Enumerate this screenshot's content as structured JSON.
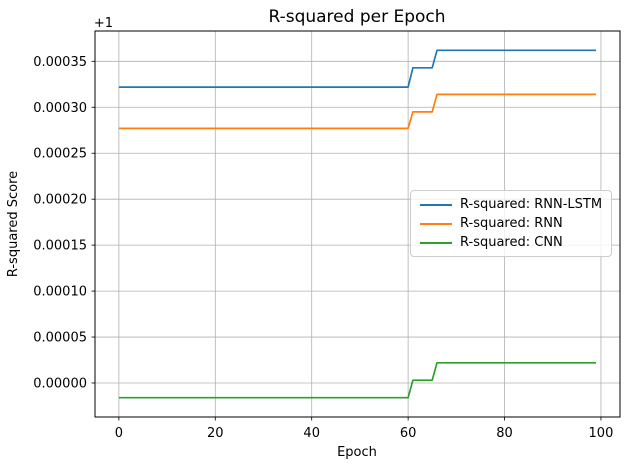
{
  "chart_data": {
    "type": "line",
    "title": "R-squared per Epoch",
    "xlabel": "Epoch",
    "ylabel": "R-squared Score",
    "offset_text": "+1",
    "x_ticks": [
      0,
      20,
      40,
      60,
      80,
      100
    ],
    "y_ticks": [
      0.0,
      5e-05,
      0.0001,
      0.00015,
      0.0002,
      0.00025,
      0.0003,
      0.00035
    ],
    "y_tick_labels": [
      "0.00000",
      "0.00005",
      "0.00010",
      "0.00015",
      "0.00020",
      "0.00025",
      "0.00030",
      "0.00035"
    ],
    "xlim": [
      -4.95,
      103.95
    ],
    "ylim": [
      -3.7e-05,
      0.000383
    ],
    "grid": true,
    "grid_color": "#b0b0b0",
    "spine_color": "#000000",
    "legend_position": "center-right",
    "series": [
      {
        "name": "R-squared: RNN-LSTM",
        "color": "#1f77b4",
        "segments": [
          {
            "x_start": 0,
            "x_end": 60,
            "value": 0.000322
          },
          {
            "x_start": 61,
            "x_end": 65,
            "value": 0.000343
          },
          {
            "x_start": 66,
            "x_end": 99,
            "value": 0.000362
          }
        ]
      },
      {
        "name": "R-squared: RNN",
        "color": "#ff7f0e",
        "segments": [
          {
            "x_start": 0,
            "x_end": 60,
            "value": 0.000277
          },
          {
            "x_start": 61,
            "x_end": 65,
            "value": 0.000295
          },
          {
            "x_start": 66,
            "x_end": 99,
            "value": 0.000314
          }
        ]
      },
      {
        "name": "R-squared: CNN",
        "color": "#2ca02c",
        "segments": [
          {
            "x_start": 0,
            "x_end": 60,
            "value": -1.6e-05
          },
          {
            "x_start": 61,
            "x_end": 65,
            "value": 3e-06
          },
          {
            "x_start": 66,
            "x_end": 99,
            "value": 2.2e-05
          }
        ]
      }
    ]
  }
}
